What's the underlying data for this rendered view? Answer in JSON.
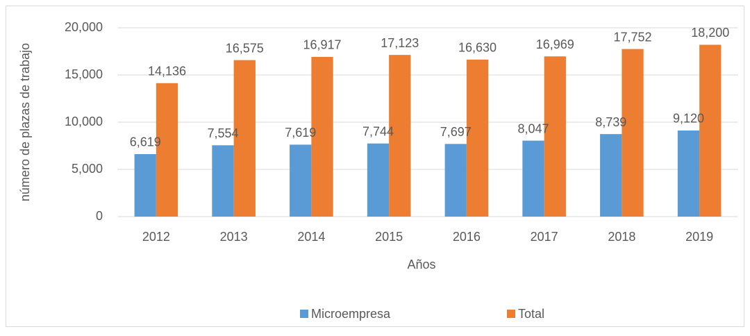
{
  "chart_data": {
    "type": "bar",
    "x_label": "Años",
    "y_label": "número de plazas de trabajo",
    "categories": [
      "2012",
      "2013",
      "2014",
      "2015",
      "2016",
      "2017",
      "2018",
      "2019"
    ],
    "series": [
      {
        "name": "Microempresa",
        "color": "#5b9bd5",
        "values": [
          6619,
          7554,
          7619,
          7744,
          7697,
          8047,
          8739,
          9120
        ],
        "value_labels": [
          "6,619",
          "7,554",
          "7,619",
          "7,744",
          "7,697",
          "8,047",
          "8,739",
          "9,120"
        ]
      },
      {
        "name": "Total",
        "color": "#ed7d31",
        "values": [
          14136,
          16575,
          16917,
          17123,
          16630,
          16969,
          17752,
          18200
        ],
        "value_labels": [
          "14,136",
          "16,575",
          "16,917",
          "17,123",
          "16,630",
          "16,969",
          "17,752",
          "18,200"
        ]
      }
    ],
    "ylim": [
      0,
      20000
    ],
    "yticks": [
      0,
      {
        "value": 5000,
        "label": "5,000"
      },
      {
        "value": 10000,
        "label": "10,000"
      },
      {
        "value": 15000,
        "label": "15,000"
      },
      {
        "value": 20000,
        "label": "20,000"
      }
    ],
    "grid": true,
    "legend": "bottom"
  }
}
